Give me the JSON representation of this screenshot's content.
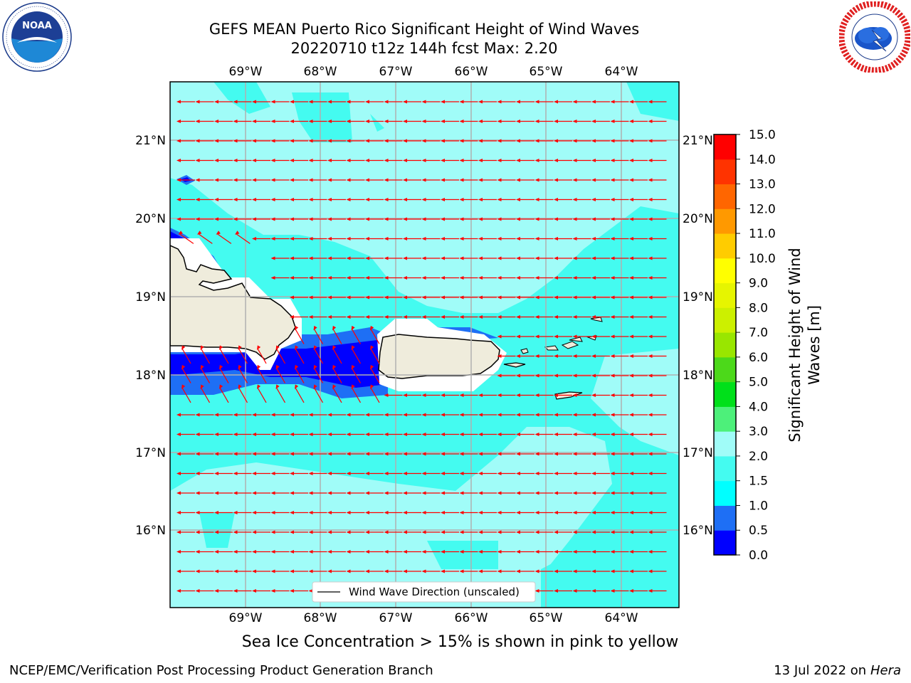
{
  "title_line1": "GEFS MEAN Puerto Rico Significant Height of Wind Waves",
  "title_line2": "20220710 t12z 144h fcst   Max: 2.20",
  "subtitle": "Sea Ice Concentration > 15% is shown in pink to yellow",
  "footer_left": "NCEP/EMC/Verification Post Processing Product Generation Branch",
  "footer_date": "13 Jul 2022 on ",
  "footer_host": "Hera",
  "logos": {
    "noara_text": "NOAA",
    "noaa_ring": "NATIONAL OCEANIC AND ATMOSPHERIC ADMINISTRATION · U.S. DEPARTMENT OF COMMERCE",
    "nws_ring": "NATIONAL WEATHER SERVICE"
  },
  "map": {
    "lon_labels": [
      "69°W",
      "68°W",
      "67°W",
      "66°W",
      "65°W",
      "64°W"
    ],
    "lat_labels": [
      "21°N",
      "20°N",
      "19°N",
      "18°N",
      "17°N",
      "16°N"
    ],
    "legend_label": "Wind Wave Direction (unscaled)",
    "arrow_color": "#ff0000",
    "land_color": "#efecdc",
    "max_value": 2.2
  },
  "colorbar": {
    "label_line1": "Significant Height of Wind",
    "label_line2": "Waves [m]",
    "ticks": [
      "0.0",
      "0.5",
      "1.0",
      "1.5",
      "2.0",
      "3.0",
      "4.0",
      "5.0",
      "6.0",
      "7.0",
      "8.0",
      "9.0",
      "10.0",
      "11.0",
      "12.0",
      "13.0",
      "14.0",
      "15.0"
    ],
    "colors": [
      "#0000ff",
      "#1e6ff5",
      "#00ffff",
      "#44fbf0",
      "#a0fcf8",
      "#4df07a",
      "#00e01a",
      "#4cd91a",
      "#99e600",
      "#ccf000",
      "#e6f500",
      "#ffff00",
      "#ffcc00",
      "#ff9900",
      "#ff6600",
      "#ff3300",
      "#ff0000"
    ]
  }
}
